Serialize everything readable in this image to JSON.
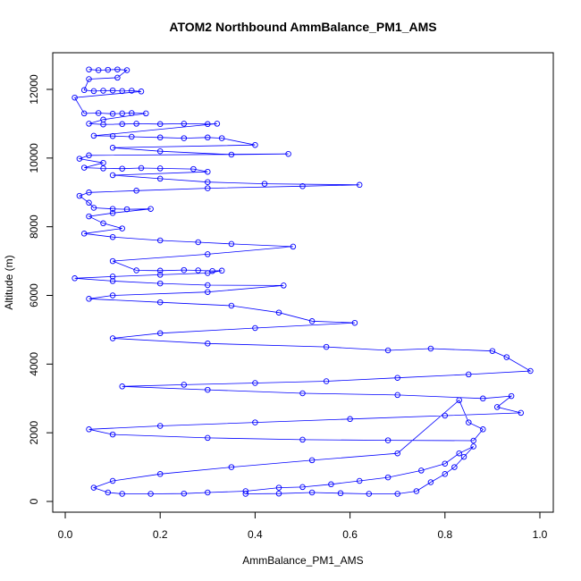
{
  "chart_data": {
    "type": "scatter",
    "title": "ATOM2 Northbound AmmBalance_PM1_AMS",
    "xlabel": "AmmBalance_PM1_AMS",
    "ylabel": "Altitude (m)",
    "xlim": [
      0.0,
      1.0
    ],
    "ylim": [
      0,
      12600
    ],
    "x_ticks": [
      "0.0",
      "0.2",
      "0.4",
      "0.6",
      "0.8",
      "1.0"
    ],
    "y_ticks": [
      "0",
      "2000",
      "4000",
      "6000",
      "8000",
      "10000",
      "12000"
    ],
    "series_color": "#0000ff",
    "marker": "open-circle",
    "connected": true,
    "grid": false,
    "legend": "none",
    "series": [
      {
        "points": [
          [
            0.05,
            12580
          ],
          [
            0.07,
            12560
          ],
          [
            0.09,
            12570
          ],
          [
            0.11,
            12580
          ],
          [
            0.13,
            12560
          ],
          [
            0.11,
            12340
          ],
          [
            0.05,
            12300
          ],
          [
            0.04,
            11980
          ],
          [
            0.06,
            11950
          ],
          [
            0.08,
            11960
          ],
          [
            0.1,
            11970
          ],
          [
            0.12,
            11950
          ],
          [
            0.14,
            11960
          ],
          [
            0.16,
            11940
          ],
          [
            0.02,
            11760
          ],
          [
            0.04,
            11300
          ],
          [
            0.07,
            11310
          ],
          [
            0.1,
            11290
          ],
          [
            0.12,
            11300
          ],
          [
            0.14,
            11310
          ],
          [
            0.17,
            11300
          ],
          [
            0.08,
            11120
          ],
          [
            0.05,
            11000
          ],
          [
            0.08,
            10980
          ],
          [
            0.12,
            10990
          ],
          [
            0.15,
            11000
          ],
          [
            0.2,
            10990
          ],
          [
            0.25,
            11000
          ],
          [
            0.3,
            10990
          ],
          [
            0.32,
            11000
          ],
          [
            0.06,
            10650
          ],
          [
            0.1,
            10640
          ],
          [
            0.14,
            10620
          ],
          [
            0.2,
            10600
          ],
          [
            0.25,
            10580
          ],
          [
            0.3,
            10600
          ],
          [
            0.33,
            10580
          ],
          [
            0.4,
            10380
          ],
          [
            0.1,
            10300
          ],
          [
            0.2,
            10200
          ],
          [
            0.35,
            10100
          ],
          [
            0.47,
            10120
          ],
          [
            0.05,
            10080
          ],
          [
            0.03,
            9980
          ],
          [
            0.08,
            9860
          ],
          [
            0.04,
            9720
          ],
          [
            0.08,
            9700
          ],
          [
            0.12,
            9690
          ],
          [
            0.16,
            9710
          ],
          [
            0.2,
            9700
          ],
          [
            0.27,
            9680
          ],
          [
            0.3,
            9600
          ],
          [
            0.1,
            9500
          ],
          [
            0.2,
            9400
          ],
          [
            0.3,
            9300
          ],
          [
            0.42,
            9250
          ],
          [
            0.62,
            9220
          ],
          [
            0.5,
            9180
          ],
          [
            0.3,
            9120
          ],
          [
            0.15,
            9050
          ],
          [
            0.05,
            9000
          ],
          [
            0.03,
            8900
          ],
          [
            0.05,
            8700
          ],
          [
            0.06,
            8550
          ],
          [
            0.1,
            8520
          ],
          [
            0.13,
            8510
          ],
          [
            0.18,
            8520
          ],
          [
            0.1,
            8400
          ],
          [
            0.05,
            8300
          ],
          [
            0.08,
            8100
          ],
          [
            0.12,
            7950
          ],
          [
            0.04,
            7800
          ],
          [
            0.1,
            7700
          ],
          [
            0.2,
            7600
          ],
          [
            0.28,
            7550
          ],
          [
            0.35,
            7500
          ],
          [
            0.48,
            7420
          ],
          [
            0.3,
            7200
          ],
          [
            0.1,
            7000
          ],
          [
            0.15,
            6730
          ],
          [
            0.2,
            6720
          ],
          [
            0.25,
            6740
          ],
          [
            0.28,
            6730
          ],
          [
            0.31,
            6710
          ],
          [
            0.33,
            6720
          ],
          [
            0.3,
            6650
          ],
          [
            0.2,
            6600
          ],
          [
            0.1,
            6550
          ],
          [
            0.02,
            6500
          ],
          [
            0.1,
            6420
          ],
          [
            0.2,
            6350
          ],
          [
            0.3,
            6300
          ],
          [
            0.46,
            6290
          ],
          [
            0.3,
            6100
          ],
          [
            0.1,
            6000
          ],
          [
            0.05,
            5900
          ],
          [
            0.2,
            5800
          ],
          [
            0.35,
            5700
          ],
          [
            0.45,
            5500
          ],
          [
            0.52,
            5250
          ],
          [
            0.61,
            5200
          ],
          [
            0.4,
            5050
          ],
          [
            0.2,
            4900
          ],
          [
            0.1,
            4750
          ],
          [
            0.3,
            4600
          ],
          [
            0.55,
            4500
          ],
          [
            0.68,
            4400
          ],
          [
            0.77,
            4450
          ],
          [
            0.9,
            4380
          ],
          [
            0.93,
            4200
          ],
          [
            0.98,
            3800
          ],
          [
            0.85,
            3700
          ],
          [
            0.7,
            3600
          ],
          [
            0.55,
            3500
          ],
          [
            0.4,
            3450
          ],
          [
            0.25,
            3400
          ],
          [
            0.12,
            3350
          ],
          [
            0.3,
            3250
          ],
          [
            0.5,
            3150
          ],
          [
            0.7,
            3100
          ],
          [
            0.88,
            3000
          ],
          [
            0.94,
            3070
          ],
          [
            0.91,
            2750
          ],
          [
            0.96,
            2580
          ],
          [
            0.8,
            2500
          ],
          [
            0.6,
            2400
          ],
          [
            0.4,
            2300
          ],
          [
            0.2,
            2200
          ],
          [
            0.05,
            2100
          ],
          [
            0.1,
            1950
          ],
          [
            0.3,
            1850
          ],
          [
            0.5,
            1800
          ],
          [
            0.68,
            1780
          ],
          [
            0.86,
            1770
          ],
          [
            0.88,
            2100
          ],
          [
            0.85,
            2300
          ],
          [
            0.83,
            2950
          ],
          [
            0.7,
            1400
          ],
          [
            0.52,
            1200
          ],
          [
            0.35,
            1000
          ],
          [
            0.2,
            800
          ],
          [
            0.1,
            600
          ],
          [
            0.06,
            400
          ],
          [
            0.09,
            260
          ],
          [
            0.12,
            220
          ],
          [
            0.18,
            220
          ],
          [
            0.25,
            230
          ],
          [
            0.3,
            260
          ],
          [
            0.38,
            300
          ],
          [
            0.45,
            400
          ],
          [
            0.5,
            420
          ],
          [
            0.56,
            500
          ],
          [
            0.62,
            600
          ],
          [
            0.68,
            700
          ],
          [
            0.75,
            900
          ],
          [
            0.8,
            1100
          ],
          [
            0.83,
            1400
          ],
          [
            0.86,
            1600
          ],
          [
            0.84,
            1300
          ],
          [
            0.82,
            1000
          ],
          [
            0.8,
            800
          ],
          [
            0.77,
            560
          ],
          [
            0.74,
            300
          ],
          [
            0.7,
            220
          ],
          [
            0.64,
            220
          ],
          [
            0.58,
            240
          ],
          [
            0.52,
            260
          ],
          [
            0.45,
            230
          ],
          [
            0.38,
            220
          ]
        ]
      }
    ]
  }
}
